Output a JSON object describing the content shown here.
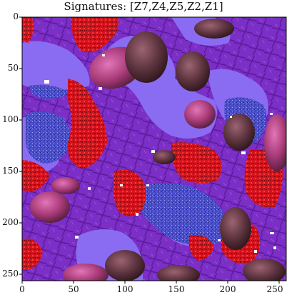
{
  "title": "Signatures:  [Z7,Z4,Z5,Z2,Z1]",
  "x_axis": {
    "ticks": [
      "0",
      "50",
      "100",
      "150",
      "200",
      "250"
    ],
    "range": [
      0,
      256
    ]
  },
  "y_axis": {
    "ticks": [
      "0",
      "50",
      "100",
      "150",
      "200",
      "250"
    ],
    "range": [
      0,
      256
    ]
  },
  "image": {
    "description_colors": {
      "background_lavender": "#8a6cf2",
      "purple_texture": "#7a2fc4",
      "red_texture": "#d8151f",
      "blue_noise": "#4a4fcf",
      "pink_rock": "#c0407e",
      "dark_brown": "#4b2a2e",
      "white_spots": "#ffffff"
    }
  }
}
